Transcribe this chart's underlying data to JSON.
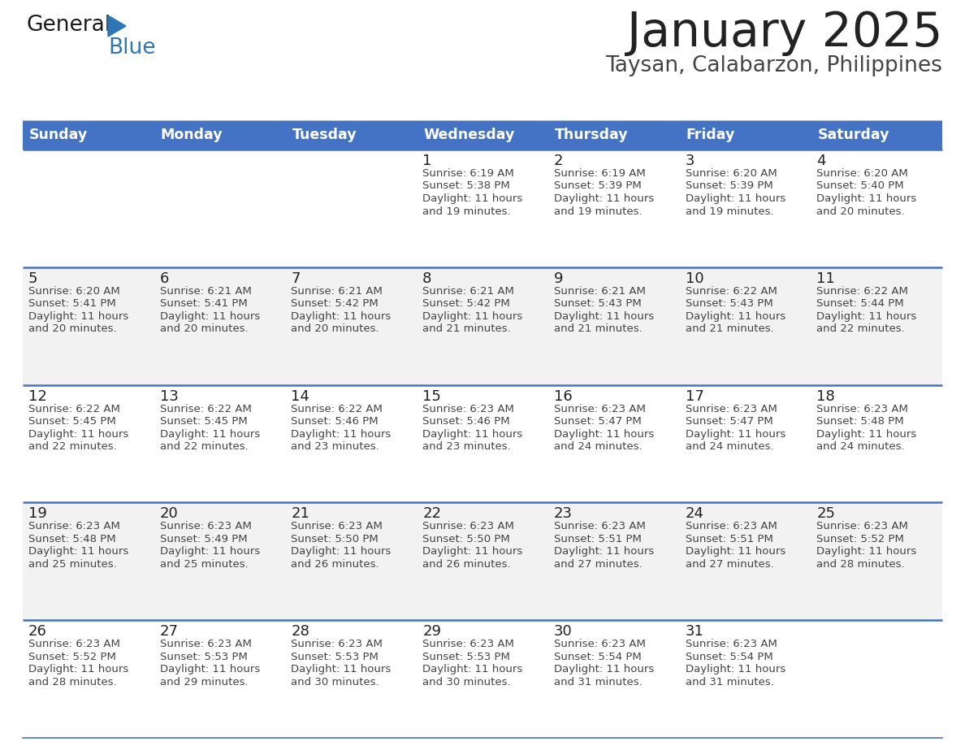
{
  "title": "January 2025",
  "subtitle": "Taysan, Calabarzon, Philippines",
  "header_bg_color": "#4472C4",
  "header_text_color": "#FFFFFF",
  "day_headers": [
    "Sunday",
    "Monday",
    "Tuesday",
    "Wednesday",
    "Thursday",
    "Friday",
    "Saturday"
  ],
  "row_bg_odd": "#F2F2F2",
  "row_bg_even": "#FFFFFF",
  "cell_border_color": "#4472C4",
  "title_color": "#222222",
  "subtitle_color": "#444444",
  "day_num_color": "#222222",
  "cell_text_color": "#444444",
  "logo_general_color": "#1a1a1a",
  "logo_blue_color": "#2E75B6",
  "calendar": [
    [
      null,
      null,
      null,
      {
        "day": 1,
        "sunrise": "6:19 AM",
        "sunset": "5:38 PM",
        "dl1": "Daylight: 11 hours",
        "dl2": "and 19 minutes."
      },
      {
        "day": 2,
        "sunrise": "6:19 AM",
        "sunset": "5:39 PM",
        "dl1": "Daylight: 11 hours",
        "dl2": "and 19 minutes."
      },
      {
        "day": 3,
        "sunrise": "6:20 AM",
        "sunset": "5:39 PM",
        "dl1": "Daylight: 11 hours",
        "dl2": "and 19 minutes."
      },
      {
        "day": 4,
        "sunrise": "6:20 AM",
        "sunset": "5:40 PM",
        "dl1": "Daylight: 11 hours",
        "dl2": "and 20 minutes."
      }
    ],
    [
      {
        "day": 5,
        "sunrise": "6:20 AM",
        "sunset": "5:41 PM",
        "dl1": "Daylight: 11 hours",
        "dl2": "and 20 minutes."
      },
      {
        "day": 6,
        "sunrise": "6:21 AM",
        "sunset": "5:41 PM",
        "dl1": "Daylight: 11 hours",
        "dl2": "and 20 minutes."
      },
      {
        "day": 7,
        "sunrise": "6:21 AM",
        "sunset": "5:42 PM",
        "dl1": "Daylight: 11 hours",
        "dl2": "and 20 minutes."
      },
      {
        "day": 8,
        "sunrise": "6:21 AM",
        "sunset": "5:42 PM",
        "dl1": "Daylight: 11 hours",
        "dl2": "and 21 minutes."
      },
      {
        "day": 9,
        "sunrise": "6:21 AM",
        "sunset": "5:43 PM",
        "dl1": "Daylight: 11 hours",
        "dl2": "and 21 minutes."
      },
      {
        "day": 10,
        "sunrise": "6:22 AM",
        "sunset": "5:43 PM",
        "dl1": "Daylight: 11 hours",
        "dl2": "and 21 minutes."
      },
      {
        "day": 11,
        "sunrise": "6:22 AM",
        "sunset": "5:44 PM",
        "dl1": "Daylight: 11 hours",
        "dl2": "and 22 minutes."
      }
    ],
    [
      {
        "day": 12,
        "sunrise": "6:22 AM",
        "sunset": "5:45 PM",
        "dl1": "Daylight: 11 hours",
        "dl2": "and 22 minutes."
      },
      {
        "day": 13,
        "sunrise": "6:22 AM",
        "sunset": "5:45 PM",
        "dl1": "Daylight: 11 hours",
        "dl2": "and 22 minutes."
      },
      {
        "day": 14,
        "sunrise": "6:22 AM",
        "sunset": "5:46 PM",
        "dl1": "Daylight: 11 hours",
        "dl2": "and 23 minutes."
      },
      {
        "day": 15,
        "sunrise": "6:23 AM",
        "sunset": "5:46 PM",
        "dl1": "Daylight: 11 hours",
        "dl2": "and 23 minutes."
      },
      {
        "day": 16,
        "sunrise": "6:23 AM",
        "sunset": "5:47 PM",
        "dl1": "Daylight: 11 hours",
        "dl2": "and 24 minutes."
      },
      {
        "day": 17,
        "sunrise": "6:23 AM",
        "sunset": "5:47 PM",
        "dl1": "Daylight: 11 hours",
        "dl2": "and 24 minutes."
      },
      {
        "day": 18,
        "sunrise": "6:23 AM",
        "sunset": "5:48 PM",
        "dl1": "Daylight: 11 hours",
        "dl2": "and 24 minutes."
      }
    ],
    [
      {
        "day": 19,
        "sunrise": "6:23 AM",
        "sunset": "5:48 PM",
        "dl1": "Daylight: 11 hours",
        "dl2": "and 25 minutes."
      },
      {
        "day": 20,
        "sunrise": "6:23 AM",
        "sunset": "5:49 PM",
        "dl1": "Daylight: 11 hours",
        "dl2": "and 25 minutes."
      },
      {
        "day": 21,
        "sunrise": "6:23 AM",
        "sunset": "5:50 PM",
        "dl1": "Daylight: 11 hours",
        "dl2": "and 26 minutes."
      },
      {
        "day": 22,
        "sunrise": "6:23 AM",
        "sunset": "5:50 PM",
        "dl1": "Daylight: 11 hours",
        "dl2": "and 26 minutes."
      },
      {
        "day": 23,
        "sunrise": "6:23 AM",
        "sunset": "5:51 PM",
        "dl1": "Daylight: 11 hours",
        "dl2": "and 27 minutes."
      },
      {
        "day": 24,
        "sunrise": "6:23 AM",
        "sunset": "5:51 PM",
        "dl1": "Daylight: 11 hours",
        "dl2": "and 27 minutes."
      },
      {
        "day": 25,
        "sunrise": "6:23 AM",
        "sunset": "5:52 PM",
        "dl1": "Daylight: 11 hours",
        "dl2": "and 28 minutes."
      }
    ],
    [
      {
        "day": 26,
        "sunrise": "6:23 AM",
        "sunset": "5:52 PM",
        "dl1": "Daylight: 11 hours",
        "dl2": "and 28 minutes."
      },
      {
        "day": 27,
        "sunrise": "6:23 AM",
        "sunset": "5:53 PM",
        "dl1": "Daylight: 11 hours",
        "dl2": "and 29 minutes."
      },
      {
        "day": 28,
        "sunrise": "6:23 AM",
        "sunset": "5:53 PM",
        "dl1": "Daylight: 11 hours",
        "dl2": "and 30 minutes."
      },
      {
        "day": 29,
        "sunrise": "6:23 AM",
        "sunset": "5:53 PM",
        "dl1": "Daylight: 11 hours",
        "dl2": "and 30 minutes."
      },
      {
        "day": 30,
        "sunrise": "6:23 AM",
        "sunset": "5:54 PM",
        "dl1": "Daylight: 11 hours",
        "dl2": "and 31 minutes."
      },
      {
        "day": 31,
        "sunrise": "6:23 AM",
        "sunset": "5:54 PM",
        "dl1": "Daylight: 11 hours",
        "dl2": "and 31 minutes."
      },
      null
    ]
  ]
}
